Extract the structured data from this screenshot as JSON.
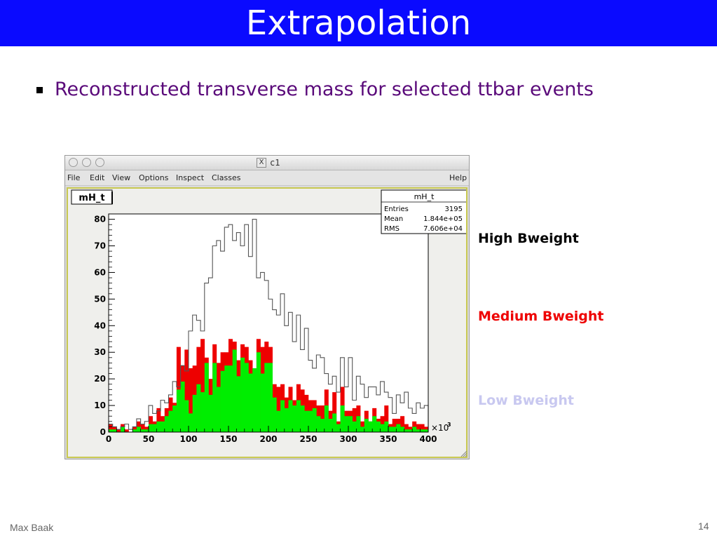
{
  "slide": {
    "title": "Extrapolation",
    "bullet": "Reconstructed transverse mass for selected ttbar events",
    "footer_author": "Max Baak",
    "page_number": "14",
    "title_bg_color": "#0a0aff",
    "bullet_color": "#5a0a7a"
  },
  "window": {
    "title": "c1",
    "x_icon": "X",
    "menu": {
      "file": "File",
      "edit": "Edit",
      "view": "View",
      "options": "Options",
      "inspect": "Inspect",
      "classes": "Classes",
      "help": "Help"
    }
  },
  "legend_labels": {
    "high": "High Bweight",
    "medium": "Medium Bweight",
    "low": "Low Bweight"
  },
  "chart_data": {
    "type": "bar",
    "title": "mH_t",
    "xlabel": "",
    "ylabel": "",
    "x_multiplier_label": "×10",
    "x_multiplier_exp": "3",
    "xlim": [
      0,
      400
    ],
    "ylim": [
      0,
      82
    ],
    "x_ticks": [
      "0",
      "50",
      "100",
      "150",
      "200",
      "250",
      "300",
      "350",
      "400"
    ],
    "y_ticks": [
      "0",
      "10",
      "20",
      "30",
      "40",
      "50",
      "60",
      "70",
      "80"
    ],
    "bin_width": 5,
    "grid": false,
    "stats": {
      "title": "mH_t",
      "rows": [
        {
          "label": "Entries",
          "value": "3195"
        },
        {
          "label": "Mean",
          "value": "1.844e+05"
        },
        {
          "label": "RMS",
          "value": "7.606e+04"
        }
      ]
    },
    "series": [
      {
        "name": "High Bweight",
        "style": "outline",
        "color": "#555555",
        "values": [
          3,
          2,
          1,
          2,
          3,
          1,
          2,
          5,
          3,
          4,
          10,
          7,
          8,
          12,
          11,
          14,
          19,
          17,
          25,
          23,
          38,
          44,
          42,
          38,
          56,
          58,
          70,
          72,
          68,
          77,
          78,
          72,
          75,
          70,
          78,
          66,
          80,
          58,
          60,
          57,
          50,
          46,
          44,
          52,
          40,
          45,
          34,
          44,
          31,
          39,
          27,
          24,
          29,
          28,
          22,
          18,
          21,
          15,
          28,
          17,
          28,
          12,
          21,
          18,
          13,
          17,
          17,
          14,
          19,
          15,
          13,
          7,
          14,
          11,
          15,
          9,
          7,
          11,
          9,
          10
        ]
      },
      {
        "name": "Medium Bweight",
        "style": "fill",
        "color": "#ee0000",
        "values": [
          3,
          2,
          1,
          3,
          1,
          0,
          2,
          4,
          3,
          2,
          6,
          4,
          9,
          6,
          9,
          13,
          11,
          32,
          25,
          31,
          24,
          25,
          32,
          35,
          28,
          20,
          33,
          26,
          30,
          30,
          35,
          34,
          27,
          33,
          32,
          27,
          23,
          35,
          32,
          34,
          32,
          18,
          17,
          18,
          13,
          17,
          12,
          18,
          16,
          14,
          12,
          12,
          10,
          10,
          16,
          8,
          15,
          4,
          17,
          8,
          8,
          9,
          10,
          4,
          8,
          4,
          9,
          5,
          6,
          10,
          3,
          5,
          5,
          6,
          3,
          2,
          4,
          3,
          3,
          2
        ]
      },
      {
        "name": "Low Bweight",
        "style": "fill",
        "color": "#00ee00",
        "values": [
          1,
          1,
          0,
          2,
          0,
          0,
          1,
          2,
          1,
          1,
          3,
          3,
          4,
          4,
          6,
          8,
          10,
          16,
          19,
          12,
          7,
          14,
          18,
          15,
          26,
          14,
          26,
          17,
          23,
          25,
          25,
          31,
          21,
          28,
          26,
          22,
          24,
          30,
          22,
          26,
          26,
          13,
          8,
          12,
          9,
          12,
          10,
          12,
          10,
          8,
          8,
          9,
          6,
          5,
          10,
          5,
          7,
          3,
          10,
          6,
          6,
          4,
          6,
          2,
          5,
          4,
          6,
          4,
          3,
          4,
          2,
          2,
          3,
          2,
          1,
          1,
          2,
          1,
          1,
          1
        ]
      }
    ]
  }
}
